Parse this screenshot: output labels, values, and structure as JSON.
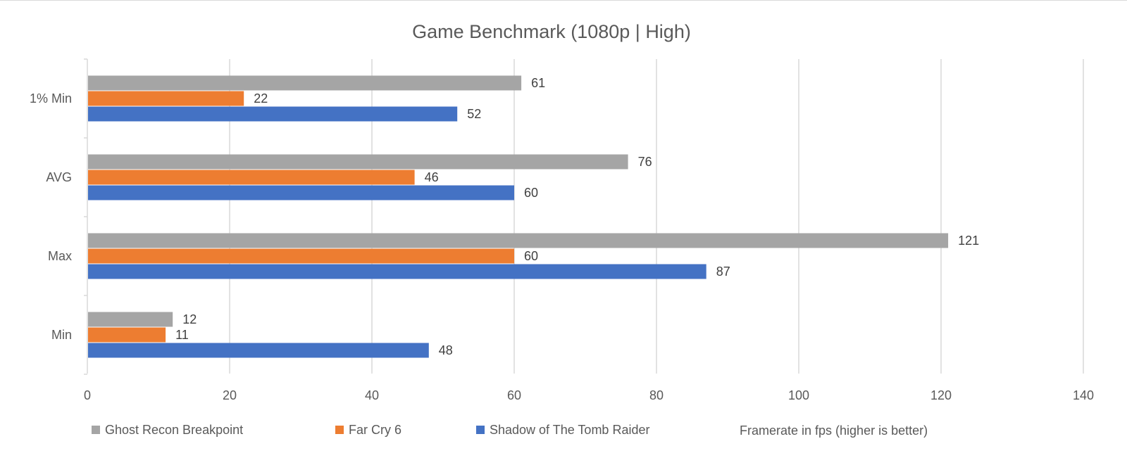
{
  "chart_data": {
    "type": "bar",
    "orientation": "horizontal",
    "title": "Game Benchmark (1080p | High)",
    "xlabel": "Framerate in fps (higher is better)",
    "ylabel": "",
    "categories": [
      "1% Min",
      "AVG",
      "Max",
      "Min"
    ],
    "xlim": [
      0,
      140
    ],
    "x_ticks": [
      0,
      20,
      40,
      60,
      80,
      100,
      120,
      140
    ],
    "grid": true,
    "legend_position": "bottom",
    "data_labels": true,
    "series": [
      {
        "name": "Ghost Recon Breakpoint",
        "color": "#a5a5a5",
        "values": [
          61,
          76,
          121,
          12
        ]
      },
      {
        "name": "Far Cry 6",
        "color": "#ed7d31",
        "values": [
          22,
          46,
          60,
          11
        ]
      },
      {
        "name": "Shadow of The Tomb Raider",
        "color": "#4472c4",
        "values": [
          52,
          60,
          87,
          48
        ]
      }
    ]
  }
}
